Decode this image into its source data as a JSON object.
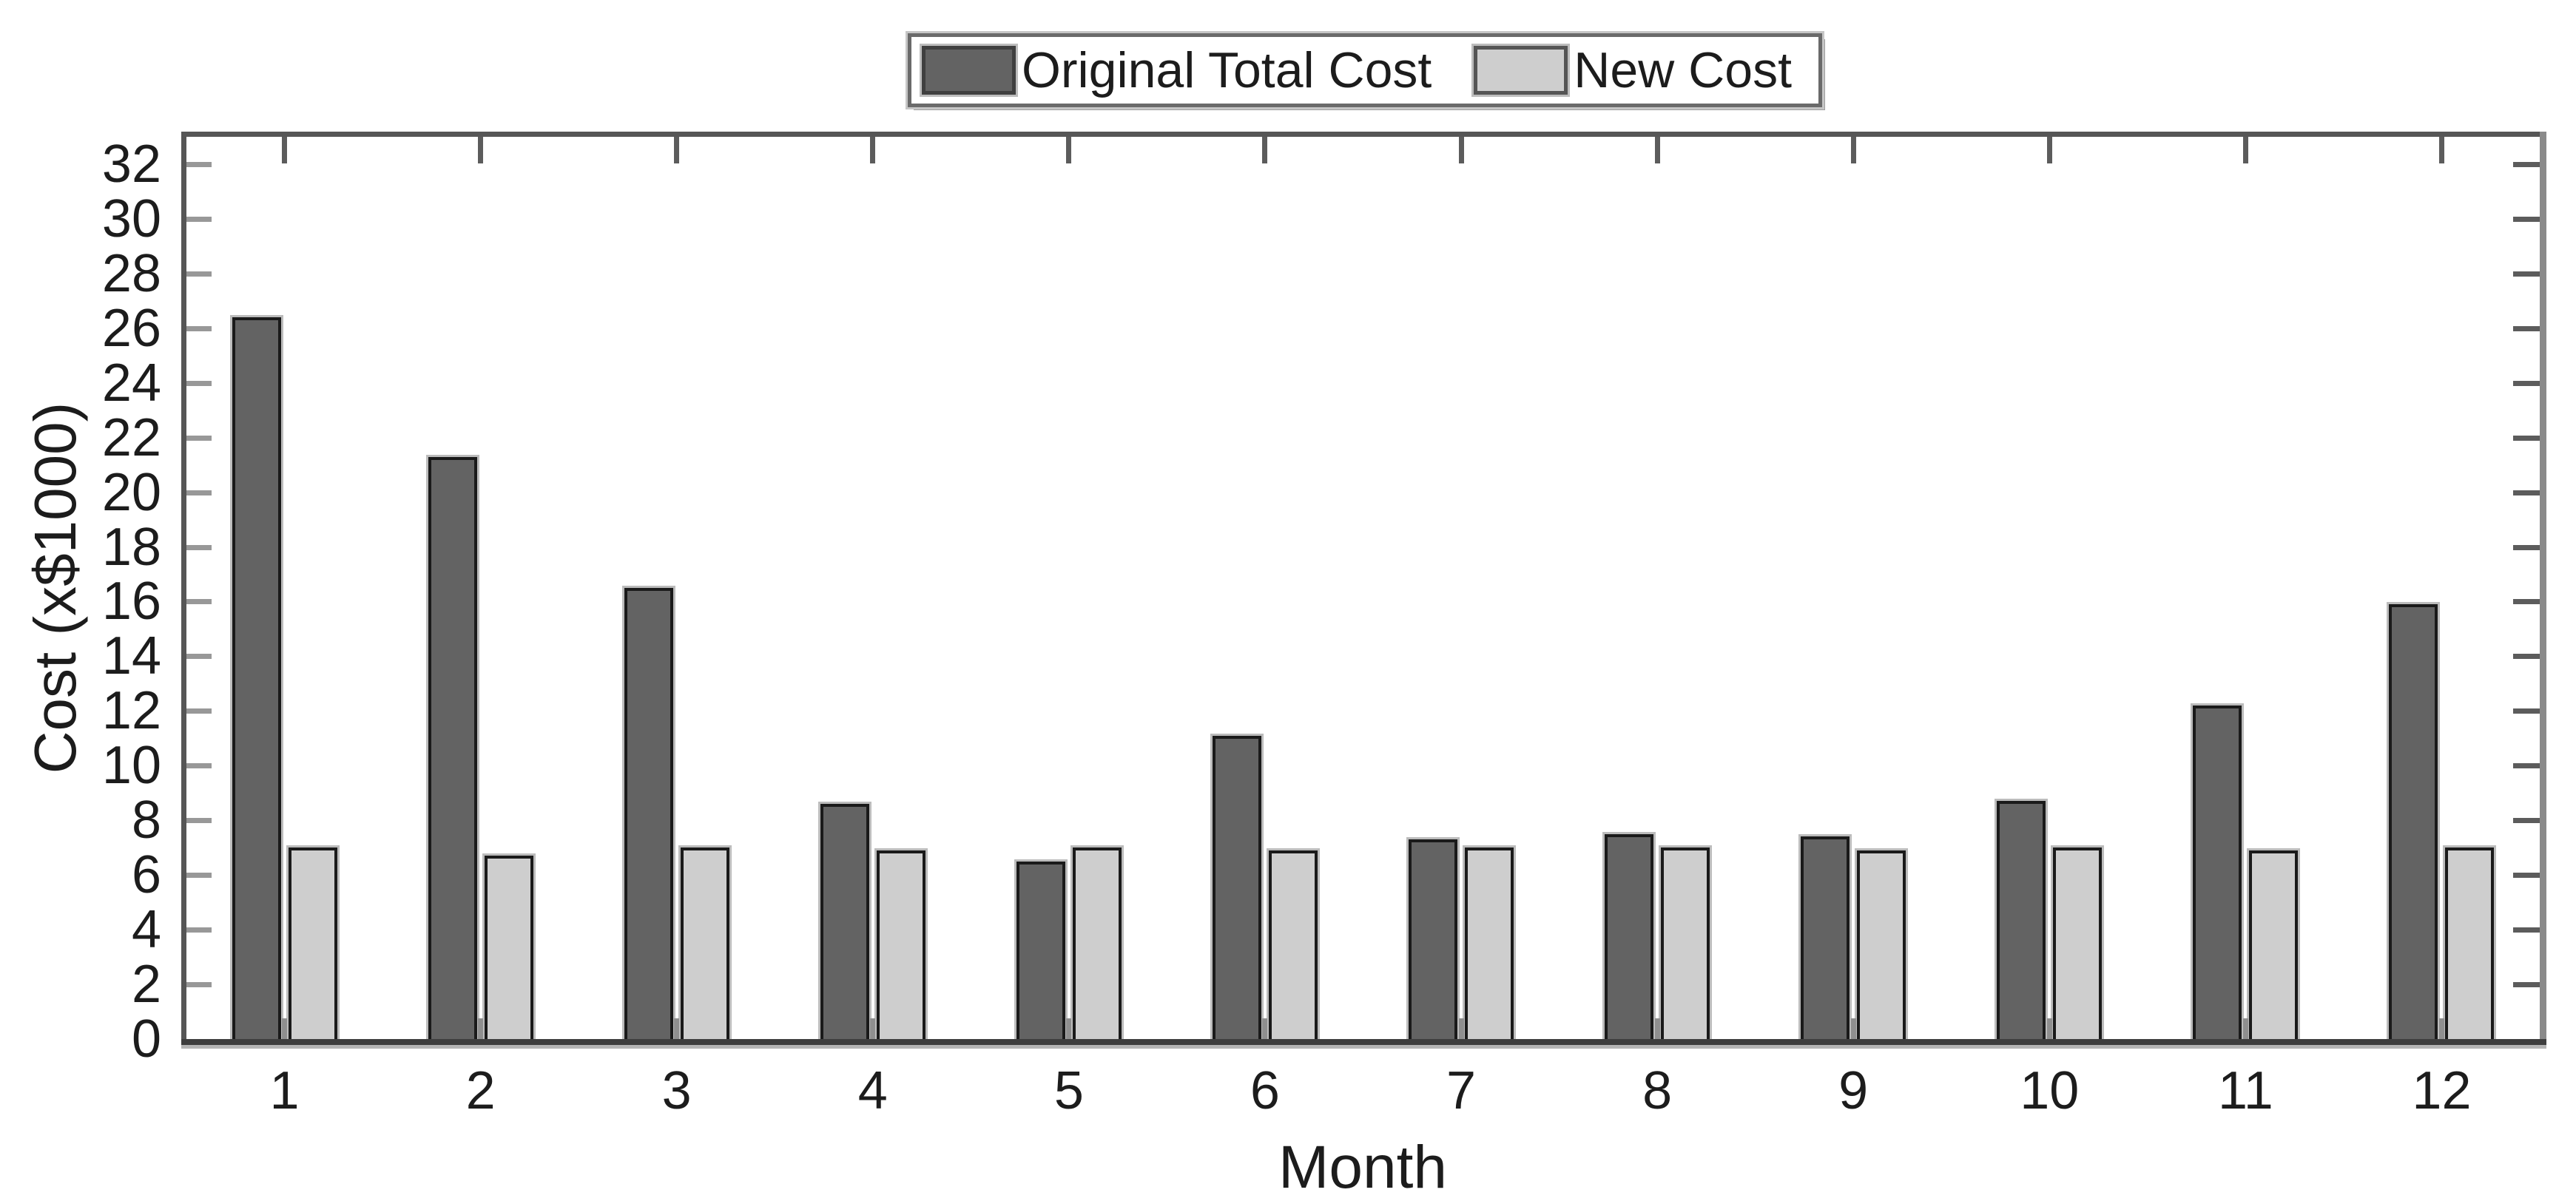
{
  "chart_data": {
    "type": "bar",
    "title": "",
    "categories": [
      "1",
      "2",
      "3",
      "4",
      "5",
      "6",
      "7",
      "8",
      "9",
      "10",
      "11",
      "12"
    ],
    "series": [
      {
        "name": "Original Total Cost",
        "color": "#636363",
        "border_color": "#1a1a1a",
        "values": [
          26.4,
          21.3,
          16.5,
          8.6,
          6.5,
          11.1,
          7.3,
          7.5,
          7.4,
          8.7,
          12.2,
          15.9
        ]
      },
      {
        "name": "New Cost",
        "color": "#cecece",
        "border_color": "#1a1a1a",
        "values": [
          7.0,
          6.7,
          7.0,
          6.9,
          7.0,
          6.9,
          7.0,
          7.0,
          6.9,
          7.0,
          6.9,
          7.0
        ]
      }
    ],
    "xlabel": "Month",
    "ylabel": "Cost (x$1000)",
    "ylim": [
      0,
      33
    ],
    "yticks": [
      0,
      2,
      4,
      6,
      8,
      10,
      12,
      14,
      16,
      18,
      20,
      22,
      24,
      26,
      28,
      30,
      32
    ],
    "grid": "off",
    "legend_position": "top-center",
    "tick_direction": "in"
  }
}
